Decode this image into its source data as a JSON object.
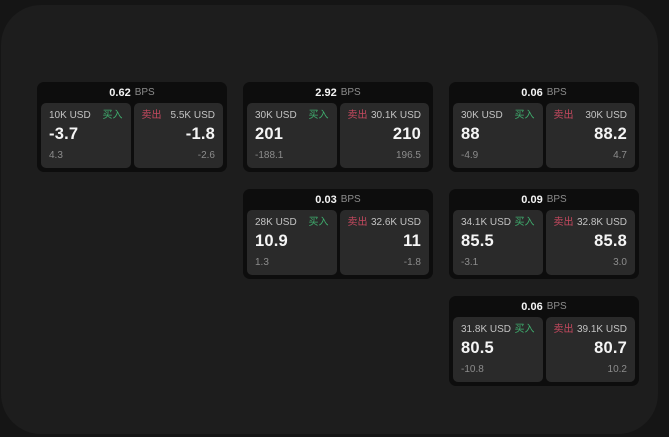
{
  "labels": {
    "bps_suffix": "BPS",
    "buy": "买入",
    "sell": "卖出"
  },
  "colors": {
    "page_background": "#151515",
    "window_background": "#1d1d1d",
    "card_background": "#0d0d0d",
    "pane_background": "#2a2a2a",
    "buy_green": "#3fae6e",
    "sell_red": "#c5495f"
  },
  "cards": [
    {
      "bps_value": "0.62",
      "buy": {
        "notional": "10K USD",
        "price": "-3.7",
        "sub": "4.3"
      },
      "sell": {
        "notional": "5.5K USD",
        "price": "-1.8",
        "sub": "-2.6"
      }
    },
    {
      "bps_value": "2.92",
      "buy": {
        "notional": "30K USD",
        "price": "201",
        "sub": "-188.1"
      },
      "sell": {
        "notional": "30.1K USD",
        "price": "210",
        "sub": "196.5"
      }
    },
    {
      "bps_value": "0.06",
      "buy": {
        "notional": "30K USD",
        "price": "88",
        "sub": "-4.9"
      },
      "sell": {
        "notional": "30K USD",
        "price": "88.2",
        "sub": "4.7"
      }
    },
    {
      "bps_value": "0.03",
      "buy": {
        "notional": "28K USD",
        "price": "10.9",
        "sub": "1.3"
      },
      "sell": {
        "notional": "32.6K USD",
        "price": "11",
        "sub": "-1.8"
      }
    },
    {
      "bps_value": "0.09",
      "buy": {
        "notional": "34.1K USD",
        "price": "85.5",
        "sub": "-3.1"
      },
      "sell": {
        "notional": "32.8K USD",
        "price": "85.8",
        "sub": "3.0"
      }
    },
    {
      "bps_value": "0.06",
      "buy": {
        "notional": "31.8K USD",
        "price": "80.5",
        "sub": "-10.8"
      },
      "sell": {
        "notional": "39.1K USD",
        "price": "80.7",
        "sub": "10.2"
      }
    }
  ]
}
